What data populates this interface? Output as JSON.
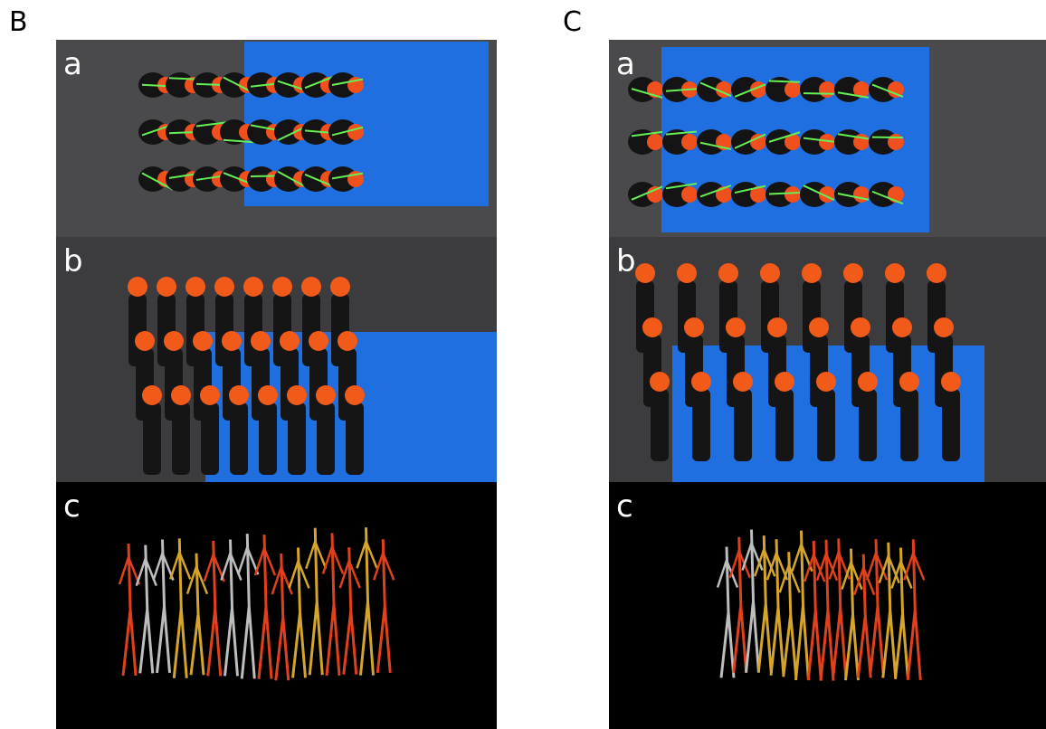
{
  "panels": [
    {
      "label": "B",
      "subpanels": [
        "a",
        "b",
        "c"
      ]
    },
    {
      "label": "C",
      "subpanels": [
        "a",
        "b",
        "c"
      ]
    }
  ]
}
